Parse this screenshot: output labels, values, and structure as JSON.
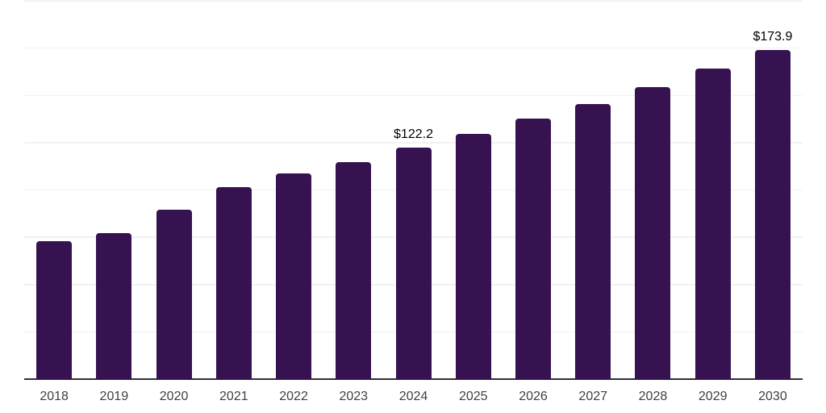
{
  "chart_data": {
    "type": "bar",
    "categories": [
      "2018",
      "2019",
      "2020",
      "2021",
      "2022",
      "2023",
      "2024",
      "2025",
      "2026",
      "2027",
      "2028",
      "2029",
      "2030"
    ],
    "values": [
      72.9,
      77.0,
      89.4,
      101.7,
      108.9,
      114.6,
      122.2,
      129.5,
      137.8,
      145.6,
      154.2,
      164.0,
      173.9
    ],
    "value_labels": [
      "",
      "",
      "",
      "",
      "",
      "",
      "$122.2",
      "",
      "",
      "",
      "",
      "",
      "$173.9"
    ],
    "ylim": [
      0,
      200
    ],
    "grid_step": 25,
    "grid": "horizontal",
    "legend": "none",
    "colors": {
      "bar": "#371250",
      "gridline": "#f2f2f2",
      "axis_line": "#2f2f38",
      "tick_label": "#404040",
      "value_label": "#000000",
      "background": "#ffffff"
    }
  }
}
